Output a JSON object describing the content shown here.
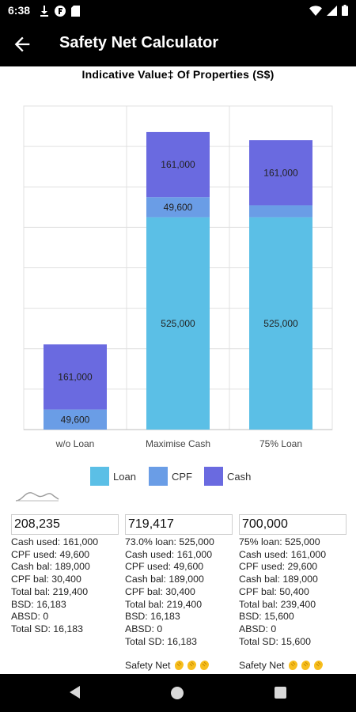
{
  "status_bar": {
    "time": "6:38",
    "icons_left": [
      "download-icon",
      "app-f-icon",
      "sd-card-icon"
    ],
    "icons_right": [
      "wifi-icon",
      "signal-icon",
      "battery-icon"
    ]
  },
  "app_bar": {
    "title": "Safety Net Calculator",
    "back_icon": "arrow-back-icon"
  },
  "chart_data": {
    "type": "bar",
    "stacked": true,
    "title": "Indicative Value‡ Of Properties (S$)",
    "categories": [
      "w/o Loan",
      "Maximise Cash",
      "75% Loan"
    ],
    "series": [
      {
        "name": "Loan",
        "color": "#5BBFE6",
        "values": [
          0,
          525000,
          525000
        ],
        "labels": [
          "",
          "525,000",
          "525,000"
        ]
      },
      {
        "name": "CPF",
        "color": "#6A9DE6",
        "values": [
          49600,
          49600,
          29600
        ],
        "labels": [
          "49,600",
          "49,600",
          ""
        ]
      },
      {
        "name": "Cash",
        "color": "#6A6AE0",
        "values": [
          161000,
          161000,
          161000
        ],
        "labels": [
          "161,000",
          "161,000",
          "161,000"
        ]
      }
    ],
    "ylim": [
      0,
      800000
    ],
    "grid": true,
    "legend": "bottom"
  },
  "columns": [
    {
      "input_value": "208,235",
      "lines": [
        "Cash used: 161,000",
        "CPF used: 49,600",
        "Cash bal: 189,000",
        "CPF bal: 30,400",
        "Total bal: 219,400",
        "BSD: 16,183",
        "ABSD: 0",
        "Total SD: 16,183"
      ],
      "safety_net": null
    },
    {
      "input_value": "719,417",
      "lines": [
        "73.0% loan: 525,000",
        "Cash used: 161,000",
        "CPF used: 49,600",
        "Cash bal: 189,000",
        "CPF bal: 30,400",
        "Total bal: 219,400",
        "BSD: 16,183",
        "ABSD: 0",
        "Total SD: 16,183"
      ],
      "safety_net": "Safety Net"
    },
    {
      "input_value": "700,000",
      "lines": [
        "75% loan: 525,000",
        "Cash used: 161,000",
        "CPF used: 29,600",
        "Cash bal: 189,000",
        "CPF bal: 50,400",
        "Total bal: 239,400",
        "BSD: 15,600",
        "ABSD: 0",
        "Total SD: 15,600"
      ],
      "safety_net": "Safety Net"
    }
  ],
  "safety_net_icon": "clapping-hands-icon",
  "safety_net_icon_count": 3,
  "nav_bar": {
    "icons": [
      "nav-back-icon",
      "nav-home-icon",
      "nav-recents-icon"
    ]
  }
}
